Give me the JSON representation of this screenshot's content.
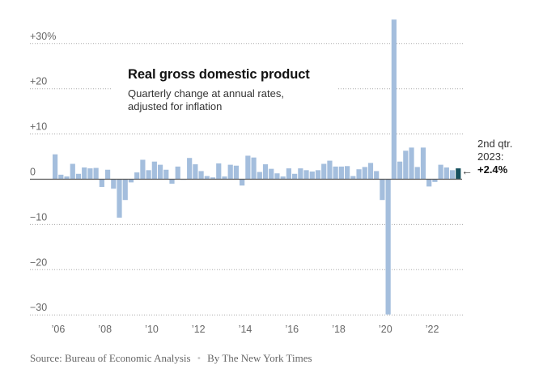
{
  "chart_data": {
    "type": "bar",
    "title": "Real gross domestic product",
    "subtitle": "Quarterly change at annual rates, adjusted for inflation",
    "xlabel": "",
    "ylabel": "",
    "unit": "%",
    "ylim": [
      -30,
      35.3
    ],
    "grid": true,
    "yticks": [
      30,
      20,
      10,
      0,
      -10,
      -20,
      -30
    ],
    "ytick_labels": [
      "+30%",
      "+20",
      "+10",
      "0",
      "−10",
      "−20",
      "−30"
    ],
    "xtick_labels": [
      "’06",
      "’08",
      "’10",
      "’12",
      "’14",
      "’16",
      "’18",
      "’20",
      "’22"
    ],
    "xtick_years": [
      2006,
      2008,
      2010,
      2012,
      2014,
      2016,
      2018,
      2020,
      2022
    ],
    "start_year": 2006,
    "start_quarter": 1,
    "categories": [
      "2006 Q1",
      "2006 Q2",
      "2006 Q3",
      "2006 Q4",
      "2007 Q1",
      "2007 Q2",
      "2007 Q3",
      "2007 Q4",
      "2008 Q1",
      "2008 Q2",
      "2008 Q3",
      "2008 Q4",
      "2009 Q1",
      "2009 Q2",
      "2009 Q3",
      "2009 Q4",
      "2010 Q1",
      "2010 Q2",
      "2010 Q3",
      "2010 Q4",
      "2011 Q1",
      "2011 Q2",
      "2011 Q3",
      "2011 Q4",
      "2012 Q1",
      "2012 Q2",
      "2012 Q3",
      "2012 Q4",
      "2013 Q1",
      "2013 Q2",
      "2013 Q3",
      "2013 Q4",
      "2014 Q1",
      "2014 Q2",
      "2014 Q3",
      "2014 Q4",
      "2015 Q1",
      "2015 Q2",
      "2015 Q3",
      "2015 Q4",
      "2016 Q1",
      "2016 Q2",
      "2016 Q3",
      "2016 Q4",
      "2017 Q1",
      "2017 Q2",
      "2017 Q3",
      "2017 Q4",
      "2018 Q1",
      "2018 Q2",
      "2018 Q3",
      "2018 Q4",
      "2019 Q1",
      "2019 Q2",
      "2019 Q3",
      "2019 Q4",
      "2020 Q1",
      "2020 Q2",
      "2020 Q3",
      "2020 Q4",
      "2021 Q1",
      "2021 Q2",
      "2021 Q3",
      "2021 Q4",
      "2022 Q1",
      "2022 Q2",
      "2022 Q3",
      "2022 Q4",
      "2023 Q1",
      "2023 Q2"
    ],
    "values": [
      5.5,
      1.0,
      0.6,
      3.4,
      1.2,
      2.6,
      2.4,
      2.5,
      -1.7,
      2.1,
      -2.1,
      -8.5,
      -4.6,
      -0.7,
      1.5,
      4.3,
      2.0,
      3.9,
      3.2,
      2.1,
      -1.0,
      2.8,
      -0.1,
      4.7,
      3.3,
      1.8,
      0.7,
      0.4,
      3.5,
      0.6,
      3.2,
      3.0,
      -1.4,
      5.2,
      4.8,
      1.6,
      3.3,
      2.3,
      1.3,
      0.6,
      2.4,
      1.2,
      2.4,
      2.0,
      1.7,
      2.0,
      3.4,
      4.1,
      2.8,
      2.8,
      2.9,
      0.7,
      2.2,
      2.7,
      3.6,
      1.8,
      -4.6,
      -29.9,
      35.3,
      3.9,
      6.3,
      7.0,
      2.7,
      7.0,
      -1.6,
      -0.6,
      3.2,
      2.6,
      2.0,
      2.4
    ],
    "highlight_index": 69,
    "colors": {
      "bar": "#a4bedd",
      "highlight": "#16505e",
      "zero_line": "#555555",
      "grid": "#aaaaaa"
    },
    "annotation": {
      "line1": "2nd qtr.",
      "line2": "2023:",
      "value": "+2.4%",
      "arrow": "←"
    }
  },
  "footer": {
    "source": "Source: Bureau of Economic Analysis",
    "separator": "•",
    "credit": "By The New York Times"
  }
}
